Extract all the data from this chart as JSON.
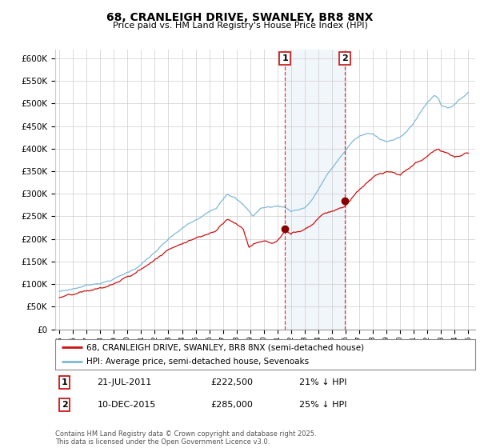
{
  "title": "68, CRANLEIGH DRIVE, SWANLEY, BR8 8NX",
  "subtitle": "Price paid vs. HM Land Registry's House Price Index (HPI)",
  "legend_line1": "68, CRANLEIGH DRIVE, SWANLEY, BR8 8NX (semi-detached house)",
  "legend_line2": "HPI: Average price, semi-detached house, Sevenoaks",
  "annotation1_label": "1",
  "annotation1_date": "21-JUL-2011",
  "annotation1_price": "£222,500",
  "annotation1_hpi": "21% ↓ HPI",
  "annotation1_year": 2011.55,
  "annotation1_value": 222500,
  "annotation2_label": "2",
  "annotation2_date": "10-DEC-2015",
  "annotation2_price": "£285,000",
  "annotation2_hpi": "25% ↓ HPI",
  "annotation2_year": 2015.94,
  "annotation2_value": 285000,
  "footer": "Contains HM Land Registry data © Crown copyright and database right 2025.\nThis data is licensed under the Open Government Licence v3.0.",
  "hpi_color": "#7fb9d8",
  "price_color": "#cc1111",
  "annotation_vline_color": "#cc2222",
  "annotation_box_color": "#cc2222",
  "shade_color": "#c8dff0",
  "background_color": "#ffffff",
  "ylim": [
    0,
    620000
  ],
  "yticks": [
    0,
    50000,
    100000,
    150000,
    200000,
    250000,
    300000,
    350000,
    400000,
    450000,
    500000,
    550000,
    600000
  ],
  "xlabel_years": [
    1995,
    1996,
    1997,
    1998,
    1999,
    2000,
    2001,
    2002,
    2003,
    2004,
    2005,
    2006,
    2007,
    2008,
    2009,
    2010,
    2011,
    2012,
    2013,
    2014,
    2015,
    2016,
    2017,
    2018,
    2019,
    2020,
    2021,
    2022,
    2023,
    2024,
    2025
  ]
}
